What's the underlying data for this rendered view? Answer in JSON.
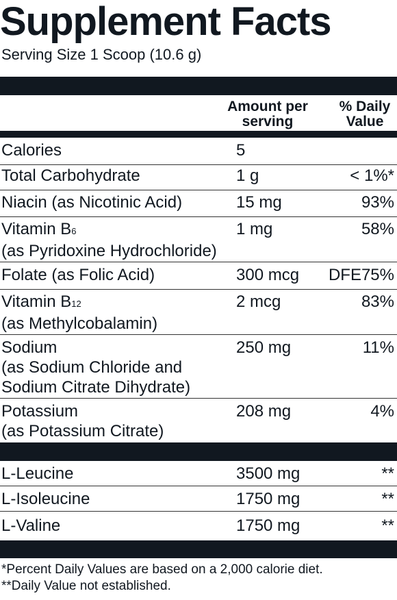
{
  "title": "Supplement Facts",
  "serving_size": "Serving Size 1 Scoop (10.6 g)",
  "header": {
    "amount": [
      "Amount per",
      "serving"
    ],
    "daily_value": [
      "% Daily",
      "Value"
    ]
  },
  "nutrients": [
    {
      "name": [
        "Calories"
      ],
      "amount": "5",
      "dv": ""
    },
    {
      "name": [
        "Total Carbohydrate"
      ],
      "amount": "1 g",
      "dv": "< 1%*"
    },
    {
      "name": [
        "Niacin (as Nicotinic Acid)"
      ],
      "amount": "15 mg",
      "dv": "93%"
    },
    {
      "name": [
        "Vitamin B",
        "(as Pyridoxine Hydrochloride)"
      ],
      "name_sub": "6",
      "amount": "1 mg",
      "dv": "58%"
    },
    {
      "name": [
        "Folate (as Folic Acid)"
      ],
      "amount": "300 mcg",
      "dv": "DFE75%"
    },
    {
      "name": [
        "Vitamin B",
        "(as Methylcobalamin)"
      ],
      "name_sub": "12",
      "amount": "2 mcg",
      "dv": "83%"
    },
    {
      "name": [
        "Sodium",
        "(as Sodium Chloride and",
        "Sodium Citrate Dihydrate)"
      ],
      "amount": "250 mg",
      "dv": "11%"
    },
    {
      "name": [
        "Potassium",
        "(as Potassium Citrate)"
      ],
      "amount": "208 mg",
      "dv": "4%"
    }
  ],
  "amino_acids": [
    {
      "name": "L-Leucine",
      "amount": "3500 mg",
      "dv": "**"
    },
    {
      "name": "L-Isoleucine",
      "amount": "1750 mg",
      "dv": "**"
    },
    {
      "name": "L-Valine",
      "amount": "1750 mg",
      "dv": "**"
    }
  ],
  "footnotes": [
    "*Percent Daily Values are based on a 2,000 calorie diet.",
    "**Daily Value not established."
  ]
}
